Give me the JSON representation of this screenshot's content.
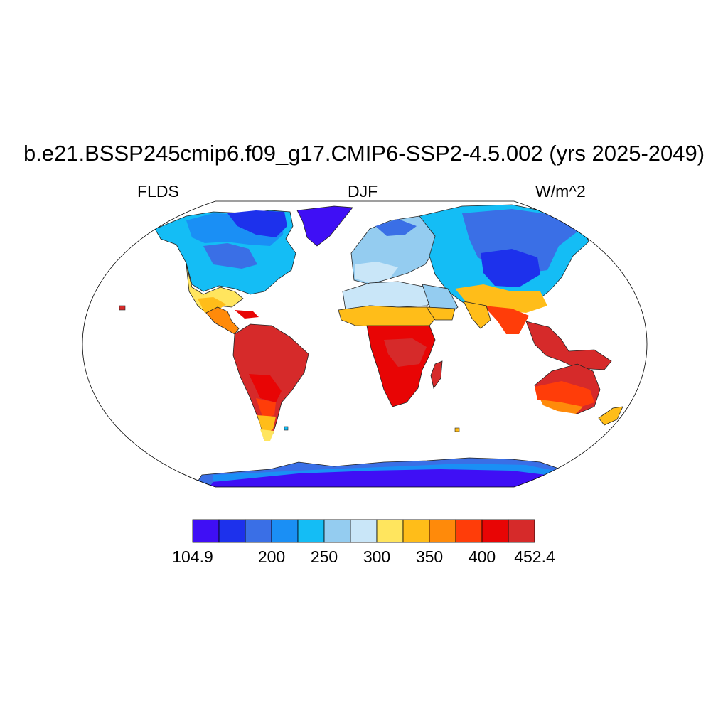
{
  "title": "b.e21.BSSP245cmip6.f09_g17.CMIP6-SSP2-4.5.002 (yrs 2025-2049)",
  "subtitle_left": "FLDS",
  "subtitle_center": "DJF",
  "subtitle_right": "W/m^2",
  "colorbar": {
    "colors": [
      "#3f0ff5",
      "#1d31ec",
      "#3a6fe6",
      "#1a8ff5",
      "#14bdf5",
      "#94ccf0",
      "#c9e6f8",
      "#ffe55e",
      "#ffbd19",
      "#ff8a0a",
      "#ff3d09",
      "#e80505",
      "#d62a2a"
    ],
    "labels": [
      {
        "text": "104.9",
        "slot": 0
      },
      {
        "text": "200",
        "slot": 3
      },
      {
        "text": "250",
        "slot": 5
      },
      {
        "text": "300",
        "slot": 7
      },
      {
        "text": "350",
        "slot": 9
      },
      {
        "text": "400",
        "slot": 11
      },
      {
        "text": "452.4",
        "slot": 13
      }
    ]
  }
}
